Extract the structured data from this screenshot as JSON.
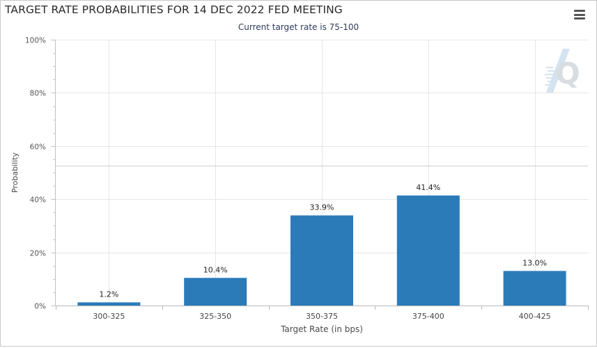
{
  "chart_data": {
    "type": "bar",
    "title": "TARGET RATE PROBABILITIES FOR 14 DEC 2022 FED MEETING",
    "subtitle": "Current target rate is 75-100",
    "xlabel": "Target Rate (in bps)",
    "ylabel": "Probability",
    "categories": [
      "300-325",
      "325-350",
      "350-375",
      "375-400",
      "400-425"
    ],
    "values": [
      1.2,
      10.4,
      33.9,
      41.4,
      13.0
    ],
    "data_labels": [
      "1.2%",
      "10.4%",
      "33.9%",
      "41.4%",
      "13.0%"
    ],
    "ylim": [
      0,
      100
    ],
    "yticks": [
      0,
      20,
      40,
      60,
      80,
      100
    ],
    "ytick_labels": [
      "0%",
      "20%",
      "40%",
      "60%",
      "80%",
      "100%"
    ],
    "reference_line": 52.5,
    "grid": true,
    "bar_color": "#2b7bb9",
    "grid_color": "#e6e6e6",
    "watermark_icon": "cme-q-logo-icon"
  },
  "toolbar": {
    "menu_icon": "hamburger-menu-icon"
  }
}
